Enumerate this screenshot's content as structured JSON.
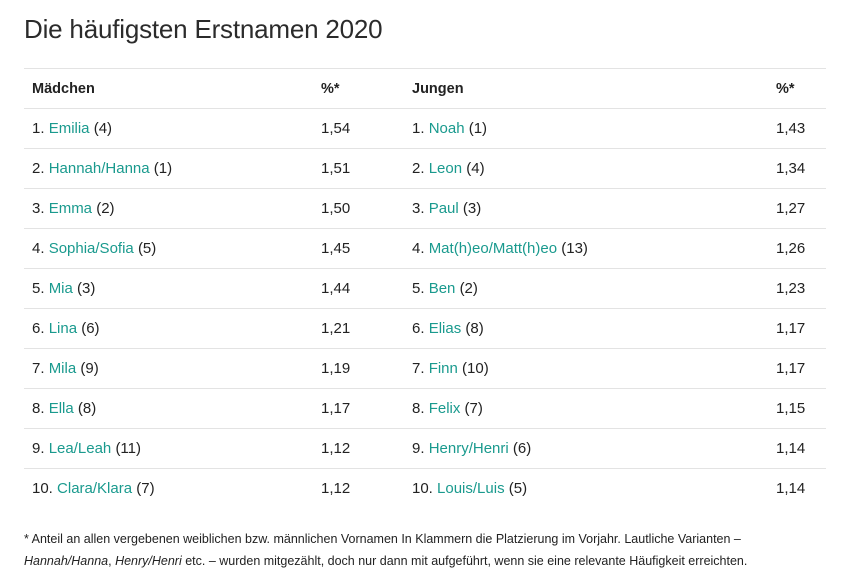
{
  "title": "Die häufigsten Erstnamen 2020",
  "headers": {
    "girls": "Mädchen",
    "girls_pct": "%*",
    "boys": "Jungen",
    "boys_pct": "%*"
  },
  "rows": [
    {
      "g_rank": "1.",
      "g_name": "Emilia",
      "g_prev": "(4)",
      "g_pct": "1,54",
      "b_rank": "1.",
      "b_name": "Noah",
      "b_prev": "(1)",
      "b_pct": "1,43"
    },
    {
      "g_rank": "2.",
      "g_name": "Hannah/Hanna",
      "g_prev": "(1)",
      "g_pct": "1,51",
      "b_rank": "2.",
      "b_name": "Leon",
      "b_prev": "(4)",
      "b_pct": "1,34"
    },
    {
      "g_rank": "3.",
      "g_name": "Emma",
      "g_prev": "(2)",
      "g_pct": "1,50",
      "b_rank": "3.",
      "b_name": "Paul",
      "b_prev": "(3)",
      "b_pct": "1,27"
    },
    {
      "g_rank": "4.",
      "g_name": "Sophia/Sofia",
      "g_prev": "(5)",
      "g_pct": "1,45",
      "b_rank": "4.",
      "b_name": "Mat(h)eo/Matt(h)eo",
      "b_prev": "(13)",
      "b_pct": "1,26"
    },
    {
      "g_rank": "5.",
      "g_name": "Mia",
      "g_prev": "(3)",
      "g_pct": "1,44",
      "b_rank": "5.",
      "b_name": "Ben",
      "b_prev": "(2)",
      "b_pct": "1,23"
    },
    {
      "g_rank": "6.",
      "g_name": "Lina",
      "g_prev": "(6)",
      "g_pct": "1,21",
      "b_rank": "6.",
      "b_name": "Elias",
      "b_prev": "(8)",
      "b_pct": "1,17"
    },
    {
      "g_rank": "7.",
      "g_name": "Mila",
      "g_prev": "(9)",
      "g_pct": "1,19",
      "b_rank": "7.",
      "b_name": "Finn",
      "b_prev": "(10)",
      "b_pct": "1,17"
    },
    {
      "g_rank": "8.",
      "g_name": "Ella",
      "g_prev": "(8)",
      "g_pct": "1,17",
      "b_rank": "8.",
      "b_name": "Felix",
      "b_prev": "(7)",
      "b_pct": "1,15"
    },
    {
      "g_rank": "9.",
      "g_name": "Lea/Leah",
      "g_prev": "(11)",
      "g_pct": "1,12",
      "b_rank": "9.",
      "b_name": "Henry/Henri",
      "b_prev": "(6)",
      "b_pct": "1,14"
    },
    {
      "g_rank": "10.",
      "g_name": "Clara/Klara",
      "g_prev": "(7)",
      "g_pct": "1,12",
      "b_rank": "10.",
      "b_name": "Louis/Luis",
      "b_prev": "(5)",
      "b_pct": "1,14"
    }
  ],
  "footnote": {
    "line1": "* Anteil an allen vergebenen weiblichen bzw. männlichen Vornamen In Klammern die Platzierung im Vorjahr. Lautliche Varianten –",
    "italic1": "Hannah/Hanna",
    "sep": ", ",
    "italic2": "Henry/Henri",
    "line2_rest": " etc. – wurden mitgezählt, doch nur dann mit aufgeführt, wenn sie eine relevante Häufigkeit erreichten."
  },
  "colors": {
    "link": "#1a9a8e",
    "border": "#e3e3e3"
  }
}
